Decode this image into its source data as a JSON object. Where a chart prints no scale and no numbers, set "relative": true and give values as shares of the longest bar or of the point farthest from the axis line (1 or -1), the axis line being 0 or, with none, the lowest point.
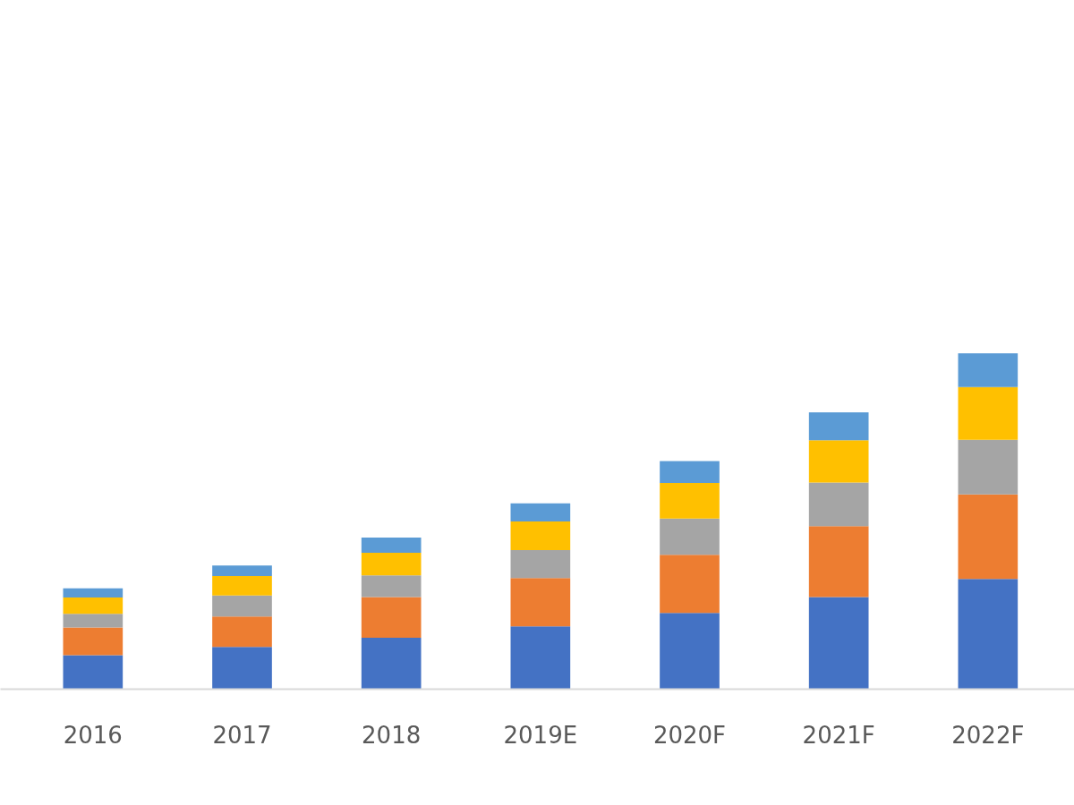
{
  "chart_data": {
    "type": "bar",
    "stacked": true,
    "relative": true,
    "grid": false,
    "categories": [
      "2016",
      "2017",
      "2018",
      "2019E",
      "2020F",
      "2021F",
      "2022F"
    ],
    "series": [
      {
        "color": "#4472c4",
        "values": [
          0.101,
          0.126,
          0.153,
          0.187,
          0.227,
          0.274,
          0.328
        ]
      },
      {
        "color": "#ed7d31",
        "values": [
          0.083,
          0.09,
          0.121,
          0.144,
          0.173,
          0.211,
          0.252
        ]
      },
      {
        "color": "#a5a5a5",
        "values": [
          0.04,
          0.063,
          0.065,
          0.083,
          0.108,
          0.13,
          0.162
        ]
      },
      {
        "color": "#ffc000",
        "values": [
          0.049,
          0.058,
          0.067,
          0.085,
          0.106,
          0.126,
          0.157
        ]
      },
      {
        "color": "#5b9bd5",
        "values": [
          0.027,
          0.031,
          0.045,
          0.054,
          0.065,
          0.083,
          0.101
        ]
      }
    ]
  }
}
